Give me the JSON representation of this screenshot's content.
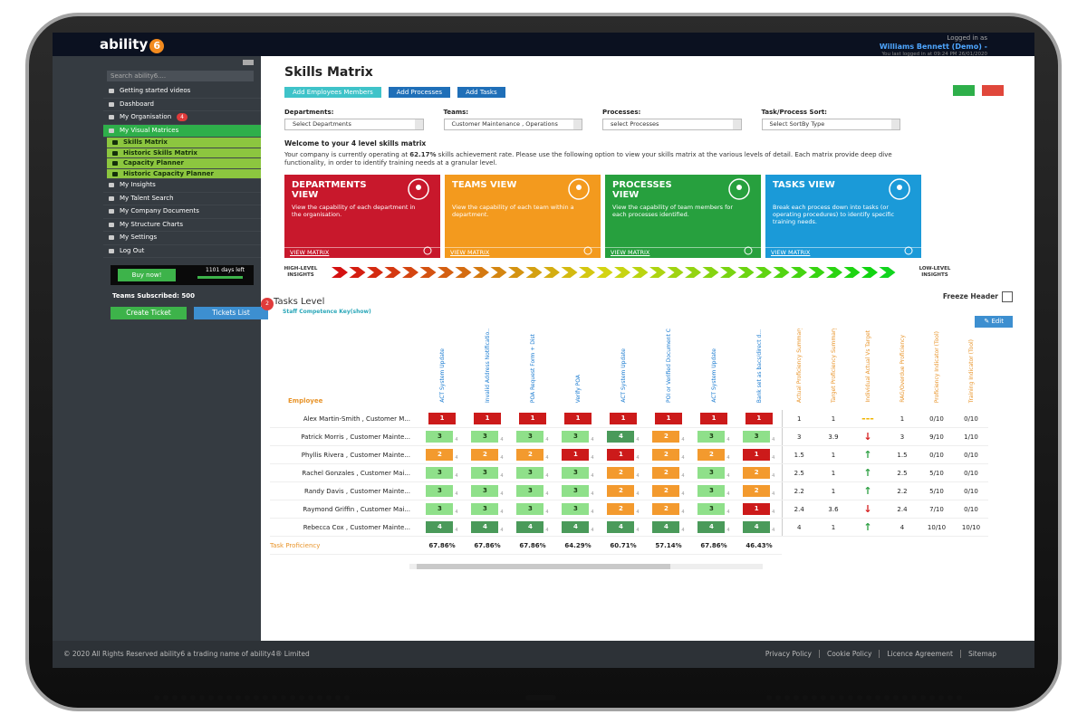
{
  "header": {
    "logo": "ability",
    "logo_mark": "6",
    "logged_in_label": "Logged in as",
    "user": "Williams Bennett (Demo) -",
    "last_login": "You last logged in at 09:24 PM 26/01/2020"
  },
  "sidebar": {
    "search_placeholder": "Search ability6....",
    "menu": [
      {
        "label": "Getting started videos"
      },
      {
        "label": "Dashboard"
      },
      {
        "label": "My Organisation",
        "badge": "4"
      },
      {
        "label": "My Visual Matrices",
        "active": true
      },
      {
        "label": "Skills Matrix",
        "sub": true
      },
      {
        "label": "Historic Skills Matrix",
        "sub": true
      },
      {
        "label": "Capacity Planner",
        "sub": true
      },
      {
        "label": "Historic Capacity Planner",
        "sub": true
      },
      {
        "label": "My Insights"
      },
      {
        "label": "My Talent Search"
      },
      {
        "label": "My Company Documents"
      },
      {
        "label": "My Structure Charts"
      },
      {
        "label": "My Settings"
      },
      {
        "label": "Log Out"
      }
    ],
    "buy_button": "Buy now!",
    "days_left": "1101 days left",
    "teams_subscribed": "Teams Subscribed: 500",
    "create_ticket": "Create Ticket",
    "tickets_list": "Tickets List",
    "tickets_badge": "2"
  },
  "main": {
    "title": "Skills Matrix",
    "buttons": [
      {
        "label": "Add Employees Members",
        "color": "#3fc3c9"
      },
      {
        "label": "Add Processes",
        "color": "#1f6fb8"
      },
      {
        "label": "Add Tasks",
        "color": "#1f6fb8"
      }
    ],
    "filters": [
      {
        "label": "Departments:",
        "value": "Select Departments"
      },
      {
        "label": "Teams:",
        "value": "Customer Maintenance , Operations"
      },
      {
        "label": "Processes:",
        "value": "select Processes"
      },
      {
        "label": "Task/Process Sort:",
        "value": "Select SortBy Type"
      }
    ],
    "welcome": "Welcome to your 4 level skills matrix",
    "intro_pre": "Your company is currently operating at ",
    "intro_rate": "62.17%",
    "intro_post": " skills achievement rate. Please use the following option to view your skills matrix at the various levels of detail. Each matrix provide deep dive functionality, in order to identify training needs at a granular level.",
    "cards": [
      {
        "title": "DEPARTMENTS VIEW",
        "text": "View the capability of each department in the organisation.",
        "link": "VIEW MATRIX",
        "color": "#c8182c"
      },
      {
        "title": "TEAMS VIEW",
        "text": "View the capability of each team within a department.",
        "link": "VIEW MATRIX",
        "color": "#f39a1e"
      },
      {
        "title": "PROCESSES VIEW",
        "text": "View the capability of team members for each processes identified.",
        "link": "VIEW MATRIX",
        "color": "#27a03e"
      },
      {
        "title": "TASKS VIEW",
        "text": "Break each process down into tasks (or operating procedures) to identify specific training needs.",
        "link": "VIEW MATRIX",
        "color": "#1b9ad8"
      }
    ],
    "high_insights": "HIGH-LEVEL INSIGHTS",
    "low_insights": "LOW-LEVEL INSIGHTS",
    "section": "Tasks Level",
    "freeze": "Freeze Header",
    "key": "Staff Competence Key(show)",
    "edit": "Edit"
  },
  "matrix": {
    "employee_header": "Employee",
    "task_columns": [
      "ACT System Update",
      "Invalid Address Notificatio...",
      "POA Request Form + Dist",
      "Verify POA",
      "ACT System Update",
      "POI or Verified Document C...",
      "ACT System Update",
      "Bank set as bacs/direct d..."
    ],
    "summary_columns": [
      "Actual Proficiency Summary",
      "Target Proficiency Summary",
      "Individual Actual Vs Target",
      "RAG/Overdue Proficiency",
      "Proficiency Indicator (Tool)",
      "Training Indicator (Tool)"
    ],
    "rows": [
      {
        "name": "Alex Martin-Smith , Customer M...",
        "cells": [
          {
            "level": 1
          },
          {
            "level": 1
          },
          {
            "level": 1
          },
          {
            "level": 1
          },
          {
            "level": 1
          },
          {
            "level": 1
          },
          {
            "level": 1
          },
          {
            "level": 1
          }
        ],
        "actual": 1,
        "target": 1,
        "trend": "---",
        "rag": 1,
        "proficiency": "0/10",
        "training": "0/10"
      },
      {
        "name": "Patrick Morris , Customer Mainte...",
        "cells": [
          {
            "level": 3,
            "target": 4
          },
          {
            "level": 3,
            "target": 4
          },
          {
            "level": 3,
            "target": 4
          },
          {
            "level": 3,
            "target": 4
          },
          {
            "level": 4,
            "target": 4
          },
          {
            "level": 2,
            "target": 4
          },
          {
            "level": 3,
            "target": 4
          },
          {
            "level": 3,
            "target": 4
          }
        ],
        "actual": 3,
        "target": 3.9,
        "trend": "↓",
        "rag": 3,
        "proficiency": "9/10",
        "training": "1/10"
      },
      {
        "name": "Phyllis Rivera , Customer Mainte...",
        "cells": [
          {
            "level": 2,
            "target": 4
          },
          {
            "level": 2,
            "target": 4
          },
          {
            "level": 2,
            "target": 4
          },
          {
            "level": 1,
            "target": 4
          },
          {
            "level": 1,
            "target": 4
          },
          {
            "level": 2,
            "target": 4
          },
          {
            "level": 2,
            "target": 4
          },
          {
            "level": 1,
            "target": 4
          }
        ],
        "actual": 1.5,
        "target": 1,
        "trend": "↑",
        "rag": 1.5,
        "proficiency": "0/10",
        "training": "0/10"
      },
      {
        "name": "Rachel Gonzales , Customer Mai...",
        "cells": [
          {
            "level": 3,
            "target": 4
          },
          {
            "level": 3,
            "target": 4
          },
          {
            "level": 3,
            "target": 4
          },
          {
            "level": 3,
            "target": 4
          },
          {
            "level": 2,
            "target": 4
          },
          {
            "level": 2,
            "target": 4
          },
          {
            "level": 3,
            "target": 4
          },
          {
            "level": 2,
            "target": 4
          }
        ],
        "actual": 2.5,
        "target": 1,
        "trend": "↑",
        "rag": 2.5,
        "proficiency": "5/10",
        "training": "0/10"
      },
      {
        "name": "Randy Davis , Customer Mainte...",
        "cells": [
          {
            "level": 3,
            "target": 4
          },
          {
            "level": 3,
            "target": 4
          },
          {
            "level": 3,
            "target": 4
          },
          {
            "level": 3,
            "target": 4
          },
          {
            "level": 2,
            "target": 4
          },
          {
            "level": 2,
            "target": 4
          },
          {
            "level": 3,
            "target": 4
          },
          {
            "level": 2,
            "target": 4
          }
        ],
        "actual": 2.2,
        "target": 1,
        "trend": "↑",
        "rag": 2.2,
        "proficiency": "5/10",
        "training": "0/10"
      },
      {
        "name": "Raymond Griffin , Customer Mai...",
        "cells": [
          {
            "level": 3,
            "target": 4
          },
          {
            "level": 3,
            "target": 4
          },
          {
            "level": 3,
            "target": 4
          },
          {
            "level": 3,
            "target": 4
          },
          {
            "level": 2,
            "target": 4
          },
          {
            "level": 2,
            "target": 4
          },
          {
            "level": 3,
            "target": 4
          },
          {
            "level": 1,
            "target": 4
          }
        ],
        "actual": 2.4,
        "target": 3.6,
        "trend": "↓",
        "rag": 2.4,
        "proficiency": "7/10",
        "training": "0/10"
      },
      {
        "name": "Rebecca Cox , Customer Mainte...",
        "cells": [
          {
            "level": 4,
            "target": 4
          },
          {
            "level": 4,
            "target": 4
          },
          {
            "level": 4,
            "target": 4
          },
          {
            "level": 4,
            "target": 4
          },
          {
            "level": 4,
            "target": 4
          },
          {
            "level": 4,
            "target": 4
          },
          {
            "level": 4,
            "target": 4
          },
          {
            "level": 4,
            "target": 4
          }
        ],
        "actual": 4,
        "target": 1,
        "trend": "↑",
        "rag": 4,
        "proficiency": "10/10",
        "training": "10/10"
      }
    ],
    "footer_label": "Task Proficiency",
    "task_proficiency": [
      "67.86%",
      "67.86%",
      "67.86%",
      "64.29%",
      "60.71%",
      "57.14%",
      "67.86%",
      "46.43%"
    ]
  },
  "footer": {
    "copyright": "© 2020 All Rights Reserved ability6 a trading name of ability4® Limited",
    "links": [
      "Privacy Policy",
      "Cookie Policy",
      "Licence Agreement",
      "Sitemap"
    ]
  }
}
